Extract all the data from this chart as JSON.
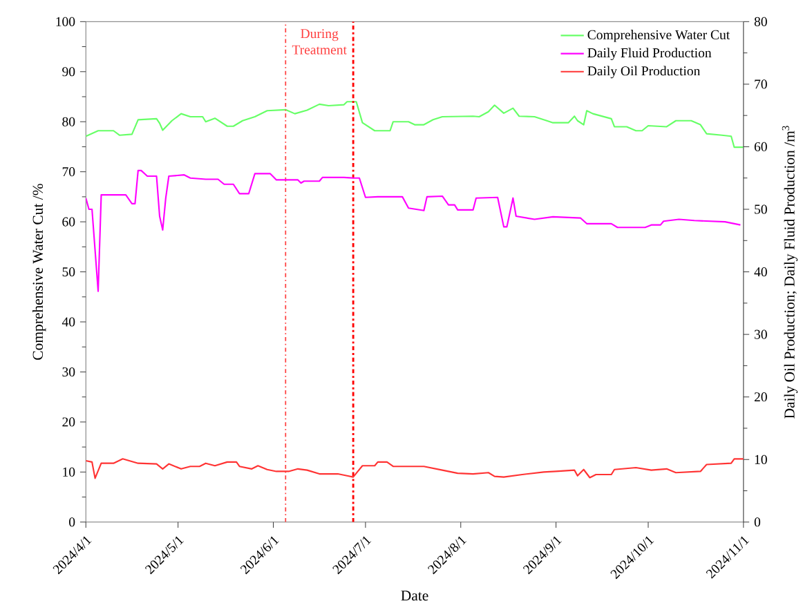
{
  "chart_data": {
    "type": "line",
    "xlabel": "Date",
    "ylabel": "Comprehensive Water Cut  /%",
    "y2label": "Daily Oil Production; Daily Fluid Production /m$^{3}$",
    "annotations": [
      "During Treatment"
    ],
    "legend": "top right",
    "xlim": [
      "2024-04-01",
      "2024-11-01"
    ],
    "xticks": [
      {
        "value": "2024-04-01",
        "label": "2024/4/1"
      },
      {
        "value": "2024-05-01",
        "label": "2024/5/1"
      },
      {
        "value": "2024-06-01",
        "label": "2024/6/1"
      },
      {
        "value": "2024-07-01",
        "label": "2024/7/1"
      },
      {
        "value": "2024-08-01",
        "label": "2024/8/1"
      },
      {
        "value": "2024-09-01",
        "label": "2024/9/1"
      },
      {
        "value": "2024-10-01",
        "label": "2024/10/1"
      },
      {
        "value": "2024-11-01",
        "label": "2024/11/1"
      }
    ],
    "ylim": [
      0,
      100
    ],
    "yticks": [
      0,
      10,
      20,
      30,
      40,
      50,
      60,
      70,
      80,
      90,
      100
    ],
    "y2lim": [
      0,
      80
    ],
    "y2ticks": [
      0,
      10,
      20,
      30,
      40,
      50,
      60,
      70,
      80
    ],
    "ref_lines": [
      {
        "axis": "x",
        "value": "2024-06-05",
        "color": "#ff4040",
        "line_style": "dashdot"
      },
      {
        "axis": "x",
        "value": "2024-06-27",
        "color": "#ff0000",
        "line_style": "dashdot"
      }
    ],
    "series": [
      {
        "name": "Comprehensive Water Cut",
        "color": "#66ff66",
        "x": [
          "2024-04-01",
          "2024-04-05",
          "2024-04-10",
          "2024-04-12",
          "2024-04-16",
          "2024-04-18",
          "2024-04-24",
          "2024-04-25",
          "2024-04-26",
          "2024-04-29",
          "2024-05-02",
          "2024-05-05",
          "2024-05-09",
          "2024-05-10",
          "2024-05-13",
          "2024-05-17",
          "2024-05-19",
          "2024-05-22",
          "2024-05-26",
          "2024-05-30",
          "2024-06-05",
          "2024-06-08",
          "2024-06-12",
          "2024-06-16",
          "2024-06-19",
          "2024-06-24",
          "2024-06-25",
          "2024-06-28",
          "2024-06-30",
          "2024-07-04",
          "2024-07-09",
          "2024-07-10",
          "2024-07-15",
          "2024-07-17",
          "2024-07-20",
          "2024-07-23",
          "2024-07-26",
          "2024-08-05",
          "2024-08-07",
          "2024-08-10",
          "2024-08-12",
          "2024-08-15",
          "2024-08-18",
          "2024-08-20",
          "2024-08-25",
          "2024-08-29",
          "2024-08-31",
          "2024-09-05",
          "2024-09-07",
          "2024-09-08",
          "2024-09-10",
          "2024-09-11",
          "2024-09-13",
          "2024-09-19",
          "2024-09-20",
          "2024-09-24",
          "2024-09-27",
          "2024-09-29",
          "2024-10-01",
          "2024-10-07",
          "2024-10-10",
          "2024-10-15",
          "2024-10-18",
          "2024-10-20",
          "2024-10-25",
          "2024-10-28",
          "2024-10-29",
          "2024-11-01"
        ],
        "values": [
          77.1,
          78.2,
          78.2,
          77.3,
          77.5,
          80.4,
          80.6,
          79.7,
          78.3,
          80.2,
          81.6,
          81,
          81,
          80,
          80.7,
          79.1,
          79.1,
          80.2,
          81,
          82.2,
          82.4,
          81.6,
          82.3,
          83.5,
          83.2,
          83.4,
          84,
          84,
          79.8,
          78.2,
          78.2,
          80,
          80,
          79.4,
          79.4,
          80.4,
          81,
          81.1,
          81,
          82,
          83.3,
          81.7,
          82.7,
          81.1,
          81,
          80.2,
          79.8,
          79.8,
          81.1,
          80.2,
          79.4,
          82.2,
          81.6,
          80.6,
          79,
          79,
          78.2,
          78.2,
          79.2,
          79,
          80.2,
          80.2,
          79.4,
          77.6,
          77.3,
          77.1,
          74.9,
          74.9
        ]
      },
      {
        "name": "Daily Fluid Production",
        "color": "#ff00ff",
        "axis": "y2",
        "x": [
          "2024-04-01",
          "2024-04-02",
          "2024-04-03",
          "2024-04-05",
          "2024-04-06",
          "2024-04-14",
          "2024-04-16",
          "2024-04-17",
          "2024-04-18",
          "2024-04-19",
          "2024-04-21",
          "2024-04-24",
          "2024-04-25",
          "2024-04-26",
          "2024-04-27",
          "2024-04-28",
          "2024-05-03",
          "2024-05-05",
          "2024-05-10",
          "2024-05-14",
          "2024-05-16",
          "2024-05-19",
          "2024-05-21",
          "2024-05-24",
          "2024-05-26",
          "2024-05-31",
          "2024-06-02",
          "2024-06-09",
          "2024-06-10",
          "2024-06-11",
          "2024-06-16",
          "2024-06-17",
          "2024-06-24",
          "2024-06-27",
          "2024-06-29",
          "2024-07-01",
          "2024-07-05",
          "2024-07-13",
          "2024-07-15",
          "2024-07-20",
          "2024-07-21",
          "2024-07-26",
          "2024-07-28",
          "2024-07-30",
          "2024-07-31",
          "2024-08-05",
          "2024-08-06",
          "2024-08-13",
          "2024-08-15",
          "2024-08-16",
          "2024-08-18",
          "2024-08-19",
          "2024-08-25",
          "2024-08-31",
          "2024-09-09",
          "2024-09-11",
          "2024-09-19",
          "2024-09-21",
          "2024-09-30",
          "2024-10-02",
          "2024-10-05",
          "2024-10-06",
          "2024-10-11",
          "2024-10-16",
          "2024-10-26",
          "2024-10-31"
        ],
        "values": [
          51.8,
          50,
          50,
          36.9,
          52.3,
          52.3,
          50.9,
          50.9,
          56.2,
          56.2,
          55.3,
          55.3,
          48.9,
          46.7,
          51.8,
          55.3,
          55.5,
          55,
          54.8,
          54.8,
          54,
          54,
          52.5,
          52.5,
          55.7,
          55.7,
          54.7,
          54.7,
          54.2,
          54.5,
          54.5,
          55.1,
          55.1,
          55,
          55,
          51.9,
          52,
          52,
          50.2,
          49.8,
          52,
          52.1,
          50.7,
          50.7,
          49.9,
          49.9,
          51.8,
          51.9,
          47.2,
          47.2,
          51.8,
          48.9,
          48.4,
          48.8,
          48.6,
          47.7,
          47.7,
          47.1,
          47.1,
          47.5,
          47.5,
          48.1,
          48.4,
          48.2,
          48,
          47.5
        ]
      },
      {
        "name": "Daily Oil Production",
        "color": "#ff3333",
        "axis": "y2",
        "x": [
          "2024-04-01",
          "2024-04-03",
          "2024-04-04",
          "2024-04-06",
          "2024-04-10",
          "2024-04-13",
          "2024-04-18",
          "2024-04-24",
          "2024-04-26",
          "2024-04-28",
          "2024-05-02",
          "2024-05-05",
          "2024-05-08",
          "2024-05-10",
          "2024-05-13",
          "2024-05-17",
          "2024-05-20",
          "2024-05-21",
          "2024-05-25",
          "2024-05-27",
          "2024-05-30",
          "2024-06-02",
          "2024-06-06",
          "2024-06-09",
          "2024-06-12",
          "2024-06-16",
          "2024-06-22",
          "2024-06-25",
          "2024-06-27",
          "2024-06-28",
          "2024-06-30",
          "2024-07-04",
          "2024-07-05",
          "2024-07-08",
          "2024-07-10",
          "2024-07-20",
          "2024-07-26",
          "2024-07-31",
          "2024-08-05",
          "2024-08-10",
          "2024-08-12",
          "2024-08-15",
          "2024-08-21",
          "2024-08-28",
          "2024-09-01",
          "2024-09-07",
          "2024-09-08",
          "2024-09-10",
          "2024-09-12",
          "2024-09-14",
          "2024-09-19",
          "2024-09-20",
          "2024-09-27",
          "2024-10-02",
          "2024-10-07",
          "2024-10-10",
          "2024-10-18",
          "2024-10-20",
          "2024-10-28",
          "2024-10-29",
          "2024-11-01"
        ],
        "values": [
          9.8,
          9.6,
          7,
          9.4,
          9.4,
          10.1,
          9.4,
          9.3,
          8.5,
          9.3,
          8.5,
          8.9,
          8.9,
          9.4,
          9,
          9.6,
          9.6,
          8.9,
          8.5,
          9,
          8.4,
          8.1,
          8.1,
          8.5,
          8.3,
          7.7,
          7.7,
          7.4,
          7.2,
          7.8,
          9,
          9,
          9.6,
          9.6,
          8.9,
          8.9,
          8.3,
          7.8,
          7.7,
          7.9,
          7.3,
          7.2,
          7.6,
          8,
          8.1,
          8.3,
          7.4,
          8.4,
          7.1,
          7.6,
          7.6,
          8.4,
          8.7,
          8.3,
          8.5,
          7.9,
          8.1,
          9.2,
          9.4,
          10.1,
          10.1
        ]
      }
    ]
  }
}
